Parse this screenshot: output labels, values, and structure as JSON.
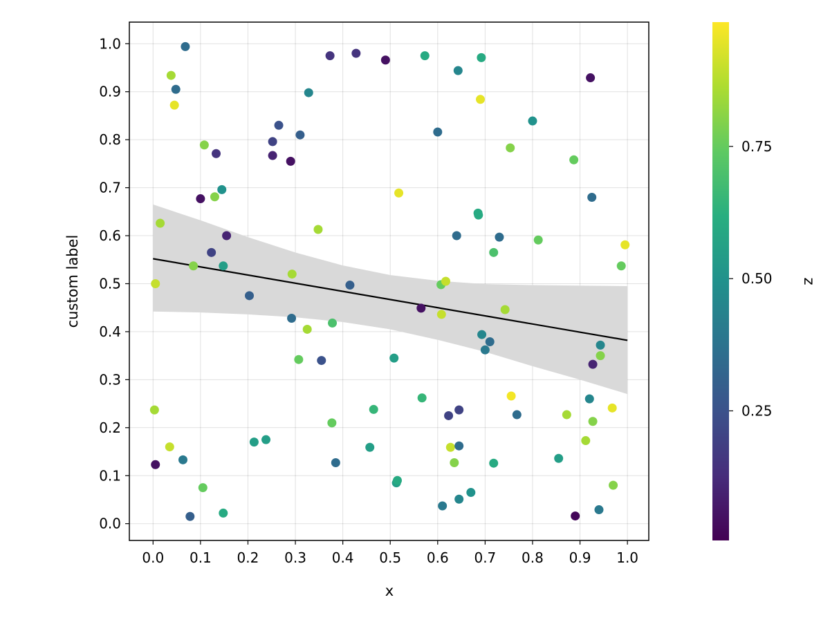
{
  "chart_data": {
    "type": "scatter",
    "title": "",
    "xlabel": "x",
    "ylabel": "custom label",
    "xlim": [
      -0.05,
      1.045
    ],
    "ylim": [
      -0.035,
      1.045
    ],
    "xticks": [
      "0.0",
      "0.1",
      "0.2",
      "0.3",
      "0.4",
      "0.5",
      "0.6",
      "0.7",
      "0.8",
      "0.9",
      "1.0"
    ],
    "yticks": [
      "0.0",
      "0.1",
      "0.2",
      "0.3",
      "0.4",
      "0.5",
      "0.6",
      "0.7",
      "0.8",
      "0.9",
      "1.0"
    ],
    "grid": true,
    "colormap": "viridis",
    "colorbar": {
      "label": "z",
      "range": [
        0.005,
        0.985
      ],
      "ticks": [
        "0.25",
        "0.50",
        "0.75"
      ],
      "tick_values": [
        0.25,
        0.5,
        0.75
      ]
    },
    "points": [
      {
        "x": 0.068,
        "y": 0.994,
        "z": 0.35
      },
      {
        "x": 0.038,
        "y": 0.934,
        "z": 0.85
      },
      {
        "x": 0.048,
        "y": 0.905,
        "z": 0.35
      },
      {
        "x": 0.045,
        "y": 0.872,
        "z": 0.95
      },
      {
        "x": 0.108,
        "y": 0.789,
        "z": 0.8
      },
      {
        "x": 0.133,
        "y": 0.771,
        "z": 0.15
      },
      {
        "x": 0.1,
        "y": 0.677,
        "z": 0.05
      },
      {
        "x": 0.145,
        "y": 0.696,
        "z": 0.5
      },
      {
        "x": 0.13,
        "y": 0.681,
        "z": 0.8
      },
      {
        "x": 0.015,
        "y": 0.626,
        "z": 0.85
      },
      {
        "x": 0.155,
        "y": 0.6,
        "z": 0.1
      },
      {
        "x": 0.123,
        "y": 0.565,
        "z": 0.2
      },
      {
        "x": 0.085,
        "y": 0.537,
        "z": 0.8
      },
      {
        "x": 0.148,
        "y": 0.537,
        "z": 0.55
      },
      {
        "x": 0.005,
        "y": 0.5,
        "z": 0.9
      },
      {
        "x": 0.203,
        "y": 0.475,
        "z": 0.3
      },
      {
        "x": 0.003,
        "y": 0.237,
        "z": 0.85
      },
      {
        "x": 0.035,
        "y": 0.16,
        "z": 0.9
      },
      {
        "x": 0.063,
        "y": 0.133,
        "z": 0.4
      },
      {
        "x": 0.005,
        "y": 0.123,
        "z": 0.05
      },
      {
        "x": 0.105,
        "y": 0.075,
        "z": 0.75
      },
      {
        "x": 0.078,
        "y": 0.015,
        "z": 0.3
      },
      {
        "x": 0.148,
        "y": 0.022,
        "z": 0.6
      },
      {
        "x": 0.213,
        "y": 0.17,
        "z": 0.55
      },
      {
        "x": 0.238,
        "y": 0.175,
        "z": 0.55
      },
      {
        "x": 0.265,
        "y": 0.83,
        "z": 0.25
      },
      {
        "x": 0.252,
        "y": 0.796,
        "z": 0.2
      },
      {
        "x": 0.252,
        "y": 0.767,
        "z": 0.1
      },
      {
        "x": 0.29,
        "y": 0.755,
        "z": 0.05
      },
      {
        "x": 0.31,
        "y": 0.81,
        "z": 0.3
      },
      {
        "x": 0.328,
        "y": 0.898,
        "z": 0.45
      },
      {
        "x": 0.373,
        "y": 0.975,
        "z": 0.15
      },
      {
        "x": 0.428,
        "y": 0.98,
        "z": 0.15
      },
      {
        "x": 0.49,
        "y": 0.966,
        "z": 0.05
      },
      {
        "x": 0.348,
        "y": 0.613,
        "z": 0.85
      },
      {
        "x": 0.293,
        "y": 0.52,
        "z": 0.85
      },
      {
        "x": 0.292,
        "y": 0.428,
        "z": 0.35
      },
      {
        "x": 0.325,
        "y": 0.405,
        "z": 0.85
      },
      {
        "x": 0.378,
        "y": 0.418,
        "z": 0.7
      },
      {
        "x": 0.307,
        "y": 0.342,
        "z": 0.75
      },
      {
        "x": 0.355,
        "y": 0.34,
        "z": 0.25
      },
      {
        "x": 0.415,
        "y": 0.497,
        "z": 0.3
      },
      {
        "x": 0.377,
        "y": 0.21,
        "z": 0.75
      },
      {
        "x": 0.385,
        "y": 0.127,
        "z": 0.35
      },
      {
        "x": 0.465,
        "y": 0.238,
        "z": 0.65
      },
      {
        "x": 0.457,
        "y": 0.159,
        "z": 0.55
      },
      {
        "x": 0.518,
        "y": 0.689,
        "z": 0.95
      },
      {
        "x": 0.508,
        "y": 0.345,
        "z": 0.55
      },
      {
        "x": 0.513,
        "y": 0.085,
        "z": 0.55
      },
      {
        "x": 0.515,
        "y": 0.09,
        "z": 0.6
      },
      {
        "x": 0.565,
        "y": 0.449,
        "z": 0.05
      },
      {
        "x": 0.567,
        "y": 0.262,
        "z": 0.65
      },
      {
        "x": 0.573,
        "y": 0.975,
        "z": 0.6
      },
      {
        "x": 0.6,
        "y": 0.816,
        "z": 0.35
      },
      {
        "x": 0.643,
        "y": 0.944,
        "z": 0.45
      },
      {
        "x": 0.692,
        "y": 0.971,
        "z": 0.6
      },
      {
        "x": 0.69,
        "y": 0.884,
        "z": 0.95
      },
      {
        "x": 0.64,
        "y": 0.6,
        "z": 0.35
      },
      {
        "x": 0.607,
        "y": 0.498,
        "z": 0.75
      },
      {
        "x": 0.617,
        "y": 0.505,
        "z": 0.9
      },
      {
        "x": 0.608,
        "y": 0.436,
        "z": 0.9
      },
      {
        "x": 0.685,
        "y": 0.647,
        "z": 0.6
      },
      {
        "x": 0.686,
        "y": 0.643,
        "z": 0.6
      },
      {
        "x": 0.73,
        "y": 0.597,
        "z": 0.35
      },
      {
        "x": 0.718,
        "y": 0.565,
        "z": 0.7
      },
      {
        "x": 0.693,
        "y": 0.394,
        "z": 0.45
      },
      {
        "x": 0.7,
        "y": 0.362,
        "z": 0.4
      },
      {
        "x": 0.71,
        "y": 0.379,
        "z": 0.35
      },
      {
        "x": 0.742,
        "y": 0.446,
        "z": 0.85
      },
      {
        "x": 0.623,
        "y": 0.225,
        "z": 0.2
      },
      {
        "x": 0.645,
        "y": 0.237,
        "z": 0.2
      },
      {
        "x": 0.627,
        "y": 0.159,
        "z": 0.9
      },
      {
        "x": 0.645,
        "y": 0.162,
        "z": 0.35
      },
      {
        "x": 0.635,
        "y": 0.127,
        "z": 0.8
      },
      {
        "x": 0.718,
        "y": 0.126,
        "z": 0.6
      },
      {
        "x": 0.61,
        "y": 0.037,
        "z": 0.4
      },
      {
        "x": 0.645,
        "y": 0.051,
        "z": 0.45
      },
      {
        "x": 0.67,
        "y": 0.065,
        "z": 0.5
      },
      {
        "x": 0.755,
        "y": 0.266,
        "z": 0.97
      },
      {
        "x": 0.767,
        "y": 0.227,
        "z": 0.35
      },
      {
        "x": 0.753,
        "y": 0.783,
        "z": 0.8
      },
      {
        "x": 0.8,
        "y": 0.839,
        "z": 0.5
      },
      {
        "x": 0.812,
        "y": 0.591,
        "z": 0.75
      },
      {
        "x": 0.887,
        "y": 0.758,
        "z": 0.75
      },
      {
        "x": 0.922,
        "y": 0.929,
        "z": 0.05
      },
      {
        "x": 0.925,
        "y": 0.68,
        "z": 0.35
      },
      {
        "x": 0.872,
        "y": 0.227,
        "z": 0.85
      },
      {
        "x": 0.855,
        "y": 0.136,
        "z": 0.55
      },
      {
        "x": 0.89,
        "y": 0.016,
        "z": 0.02
      },
      {
        "x": 0.92,
        "y": 0.26,
        "z": 0.45
      },
      {
        "x": 0.927,
        "y": 0.332,
        "z": 0.1
      },
      {
        "x": 0.943,
        "y": 0.372,
        "z": 0.45
      },
      {
        "x": 0.943,
        "y": 0.35,
        "z": 0.8
      },
      {
        "x": 0.927,
        "y": 0.213,
        "z": 0.8
      },
      {
        "x": 0.912,
        "y": 0.173,
        "z": 0.85
      },
      {
        "x": 0.968,
        "y": 0.241,
        "z": 0.95
      },
      {
        "x": 0.97,
        "y": 0.08,
        "z": 0.8
      },
      {
        "x": 0.94,
        "y": 0.029,
        "z": 0.4
      },
      {
        "x": 0.987,
        "y": 0.537,
        "z": 0.75
      },
      {
        "x": 0.995,
        "y": 0.581,
        "z": 0.95
      }
    ],
    "regression": {
      "line": [
        [
          0.0,
          0.552
        ],
        [
          1.0,
          0.382
        ]
      ],
      "band_upper": [
        [
          0.0,
          0.665
        ],
        [
          0.1,
          0.632
        ],
        [
          0.2,
          0.597
        ],
        [
          0.3,
          0.565
        ],
        [
          0.4,
          0.538
        ],
        [
          0.5,
          0.518
        ],
        [
          0.6,
          0.506
        ],
        [
          0.7,
          0.499
        ],
        [
          0.8,
          0.497
        ],
        [
          0.9,
          0.496
        ],
        [
          1.0,
          0.495
        ]
      ],
      "band_lower": [
        [
          0.0,
          0.442
        ],
        [
          0.1,
          0.44
        ],
        [
          0.2,
          0.436
        ],
        [
          0.3,
          0.43
        ],
        [
          0.4,
          0.42
        ],
        [
          0.5,
          0.405
        ],
        [
          0.6,
          0.383
        ],
        [
          0.7,
          0.358
        ],
        [
          0.8,
          0.328
        ],
        [
          0.9,
          0.3
        ],
        [
          1.0,
          0.27
        ]
      ],
      "line_color": "#000000",
      "band_color": "#d9d9d9"
    }
  }
}
